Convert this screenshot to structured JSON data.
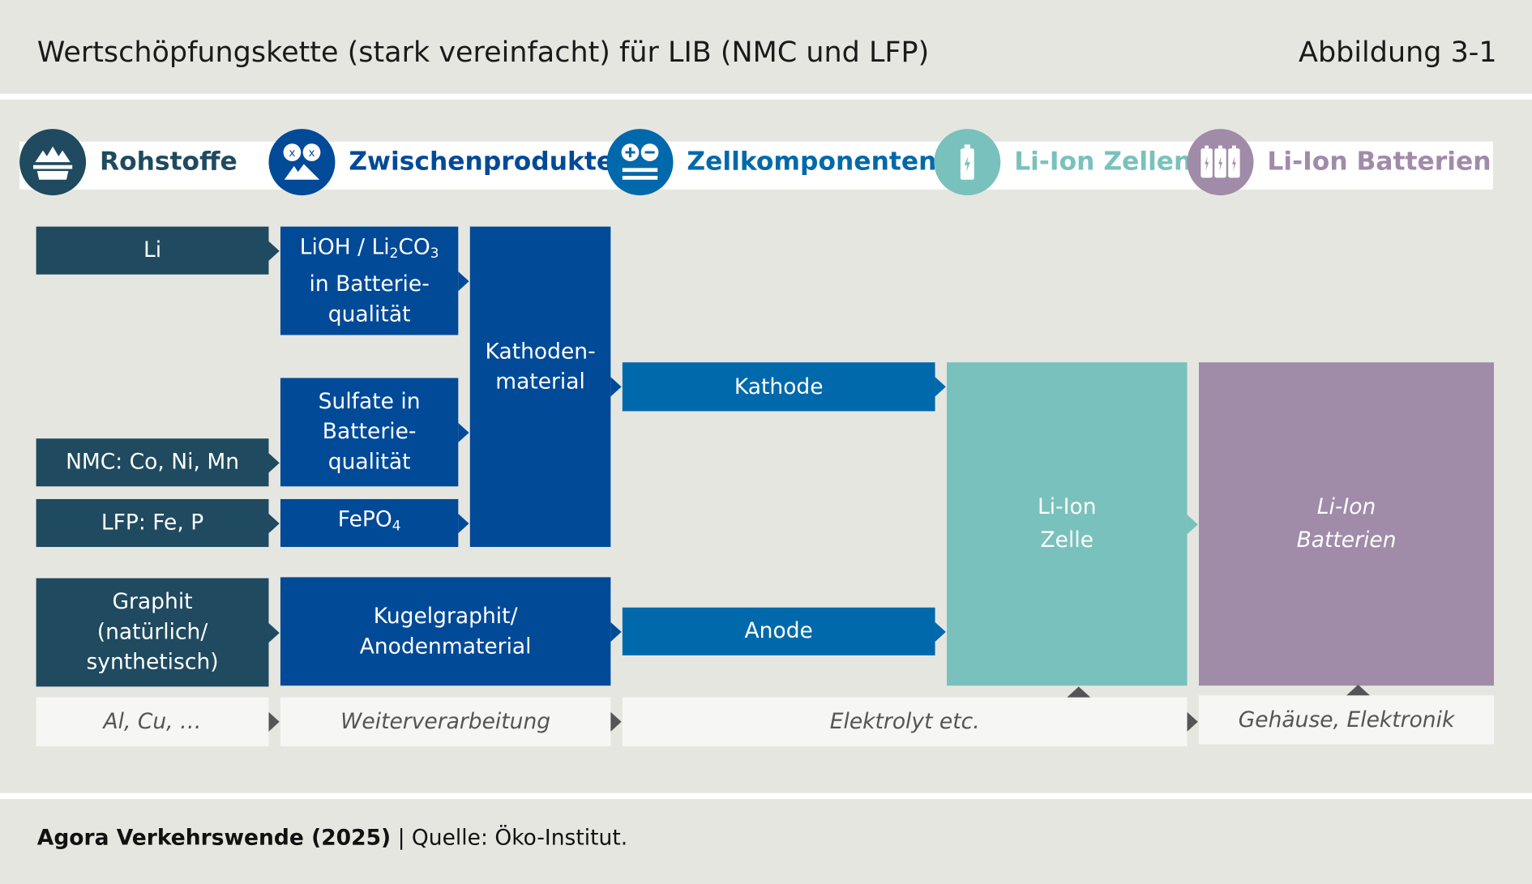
{
  "header": {
    "title": "Wertschöpfungskette (stark vereinfacht) für LIB (NMC und LFP)",
    "figure_label": "Abbildung 3-1"
  },
  "categories": [
    {
      "label": "Rohstoffe",
      "icon": "mine-icon",
      "color": "#1f4a5f"
    },
    {
      "label": "Zwischenprodukte",
      "icon": "chemistry-icon",
      "color": "#004a98"
    },
    {
      "label": "Zellkomponenten",
      "icon": "plus-minus-icon",
      "color": "#0069ab"
    },
    {
      "label": "Li-Ion Zellen",
      "icon": "battery-cell-icon",
      "color": "#79c1bc"
    },
    {
      "label": "Li-Ion Batterien",
      "icon": "battery-pack-icon",
      "color": "#a08ba9"
    }
  ],
  "boxes": {
    "li": "Li",
    "nmc": "NMC: Co, Ni, Mn",
    "lfp": "LFP: Fe, P",
    "graphit": [
      "Graphit",
      "(natürlich/",
      "synthetisch)"
    ],
    "lioh": {
      "pre": "LiOH / Li",
      "sub1": "2",
      "mid": "CO",
      "sub2": "3",
      "l2": "in Batterie-",
      "l3": "qualität"
    },
    "sulfate": [
      "Sulfate in",
      "Batterie-",
      "qualität"
    ],
    "fepo": {
      "pre": "FePO",
      "sub": "4"
    },
    "kugel": [
      "Kugelgraphit/",
      "Anodenmaterial"
    ],
    "kathodenmaterial": [
      "Kathoden-",
      "material"
    ],
    "kathode": "Kathode",
    "anode": "Anode",
    "zelle": [
      "Li-Ion",
      "Zelle"
    ],
    "batterien": [
      "Li-Ion",
      "Batterien"
    ]
  },
  "inputs": {
    "alcu": "Al, Cu, …",
    "weiter": "Weiterverarbeitung",
    "elektrolyt": "Elektrolyt etc.",
    "gehaeuse": "Gehäuse, Elektronik"
  },
  "footer": {
    "source_bold": "Agora Verkehrswende (2025)",
    "source_rest": " | Quelle: Öko-Institut."
  }
}
